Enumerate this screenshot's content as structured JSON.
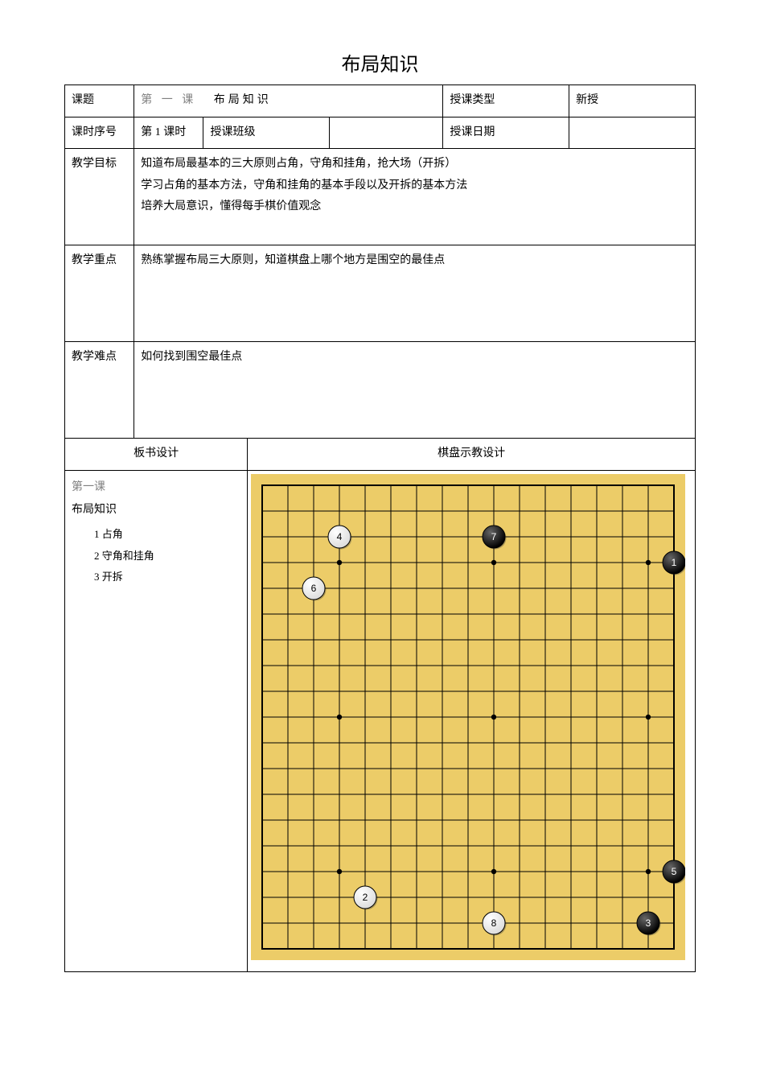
{
  "title": "布局知识",
  "row1": {
    "c1": "课题",
    "c2a": "第 一 课",
    "c2b": "布局知识",
    "c3": "授课类型",
    "c4": "新授"
  },
  "row2": {
    "c1": "课时序号",
    "c2": "第 1 课时",
    "c3": "授课班级",
    "c4": "",
    "c5": "授课日期",
    "c6": ""
  },
  "row3": {
    "label": "教学目标",
    "line1": "知道布局最基本的三大原则占角，守角和挂角，抢大场（开拆）",
    "line2": "学习占角的基本方法，守角和挂角的基本手段以及开拆的基本方法",
    "line3": "培养大局意识，懂得每手棋价值观念"
  },
  "row4": {
    "label": "教学重点",
    "text": "熟练掌握布局三大原则，知道棋盘上哪个地方是围空的最佳点"
  },
  "row5": {
    "label": "教学难点",
    "text": "如何找到围空最佳点"
  },
  "row6": {
    "left": "板书设计",
    "right": "棋盘示教设计"
  },
  "row7": {
    "l1": "第一课",
    "l2": "布局知识",
    "li1": "1 占角",
    "li2": "2 守角和挂角",
    "li3": "3 开拆"
  },
  "board": {
    "size": 19,
    "cell": 32,
    "margin": 14,
    "bg": "#eccc68",
    "line": "#000000",
    "star_radius": 3.2,
    "stars": [
      [
        3,
        3
      ],
      [
        3,
        9
      ],
      [
        3,
        15
      ],
      [
        9,
        3
      ],
      [
        9,
        9
      ],
      [
        9,
        15
      ],
      [
        15,
        3
      ],
      [
        15,
        9
      ],
      [
        15,
        15
      ]
    ],
    "stone_radius": 14,
    "stone_font": 12,
    "white_fill": "#ffffff",
    "black_fill": "#000000",
    "white_stroke": "#000000",
    "black_stroke": "#000000",
    "shadow": "#333333",
    "stones": [
      {
        "n": 1,
        "color": "black",
        "col": 16,
        "row": 3
      },
      {
        "n": 2,
        "color": "white",
        "col": 4,
        "row": 16
      },
      {
        "n": 3,
        "color": "black",
        "col": 15,
        "row": 17
      },
      {
        "n": 4,
        "color": "white",
        "col": 3,
        "row": 2
      },
      {
        "n": 5,
        "color": "black",
        "col": 16,
        "row": 15
      },
      {
        "n": 6,
        "color": "white",
        "col": 2,
        "row": 4
      },
      {
        "n": 7,
        "color": "black",
        "col": 9,
        "row": 2
      },
      {
        "n": 8,
        "color": "white",
        "col": 9,
        "row": 17
      }
    ],
    "visible_cols": 17,
    "visible_rows": 19
  }
}
